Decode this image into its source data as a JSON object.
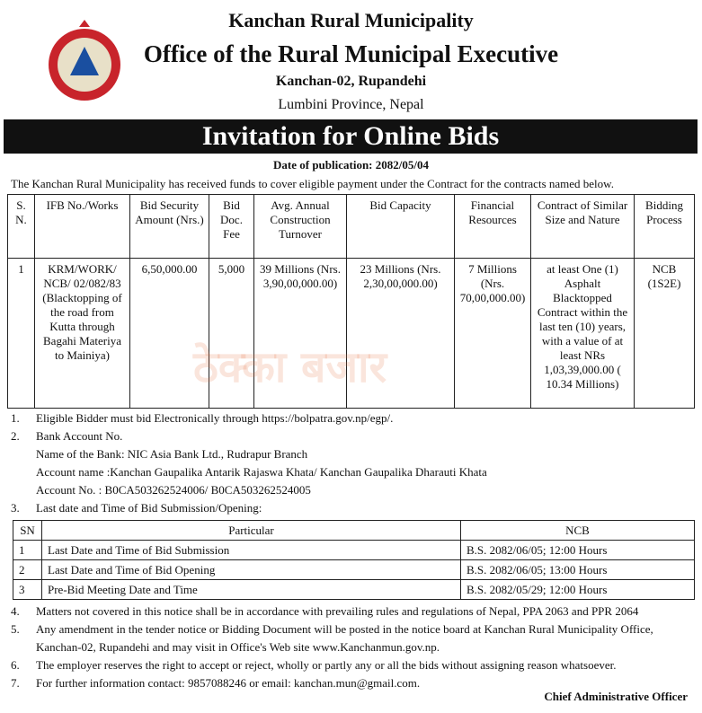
{
  "header": {
    "municipality": "Kanchan Rural  Municipality",
    "office": "Office of the Rural Municipal Executive",
    "address": "Kanchan-02, Rupandehi",
    "province": "Lumbini Province, Nepal"
  },
  "banner": "Invitation for Online Bids",
  "publication_date": "Date of publication: 2082/05/04",
  "intro": "The Kanchan Rural Municipality has received funds to cover eligible payment under the Contract for the contracts named below.",
  "bids_table": {
    "columns": [
      "S. N.",
      "IFB No./Works",
      "Bid Security Amount (Nrs.)",
      "Bid Doc. Fee",
      "Avg. Annual Construction Turnover",
      "Bid Capacity",
      "Financial Resources",
      "Contract of Similar Size and Nature",
      "Bidding Process"
    ],
    "rows": [
      [
        "1",
        "KRM/WORK/ NCB/ 02/082/83 (Blacktopping of the road from Kutta through Bagahi Materiya to Mainiya)",
        "6,50,000.00",
        "5,000",
        "39 Millions (Nrs. 3,90,00,000.00)",
        "23 Millions (Nrs. 2,30,00,000.00)",
        "7 Millions (Nrs. 70,00,000.00)",
        "at least One (1) Asphalt Blacktopped Contract within the last  ten (10) years, with a value of at least NRs 1,03,39,000.00 ( 10.34 Millions)",
        "NCB (1S2E)"
      ]
    ]
  },
  "watermark": "ठेक्का बजार",
  "notes": [
    {
      "number": "1.",
      "text": "Eligible Bidder must  bid Electronically through https://bolpatra.gov.np/egp/."
    },
    {
      "number": "2.",
      "text": "Bank Account No.",
      "lines": [
        "Name of the Bank: NIC Asia Bank Ltd., Rudrapur Branch",
        "Account name :Kanchan Gaupalika Antarik Rajaswa Khata/ Kanchan Gaupalika Dharauti Khata",
        "Account  No. :  B0CA503262524006/ B0CA503262524005"
      ]
    },
    {
      "number": "3.",
      "text": "Last date and Time of Bid Submission/Opening:"
    },
    {
      "number": "4.",
      "text": "Matters not covered in this notice shall be in accordance with prevailing rules and regulations of Nepal, PPA 2063 and PPR 2064"
    },
    {
      "number": "5.",
      "text": "Any amendment in the tender notice or Bidding Document will be posted in the notice board at Kanchan Rural Municipality Office, Kanchan-02, Rupandehi and may visit in Office's Web site www.Kanchanmun.gov.np."
    },
    {
      "number": "6.",
      "text": "The employer reserves the right to accept or reject, wholly or partly any or all the bids without assigning reason whatsoever."
    },
    {
      "number": "7.",
      "text": "For further information contact: 9857088246 or email: kanchan.mun@gmail.com."
    }
  ],
  "schedule_table": {
    "columns": [
      "SN",
      "Particular",
      "NCB"
    ],
    "rows": [
      [
        "1",
        "Last Date and Time of Bid Submission",
        "B.S. 2082/06/05; 12:00 Hours"
      ],
      [
        "2",
        "Last Date and Time of Bid Opening",
        "B.S. 2082/06/05; 13:00 Hours"
      ],
      [
        "3",
        "Pre-Bid Meeting Date and Time",
        "B.S. 2082/05/29; 12:00 Hours"
      ]
    ]
  },
  "signature": "Chief Administrative Officer"
}
